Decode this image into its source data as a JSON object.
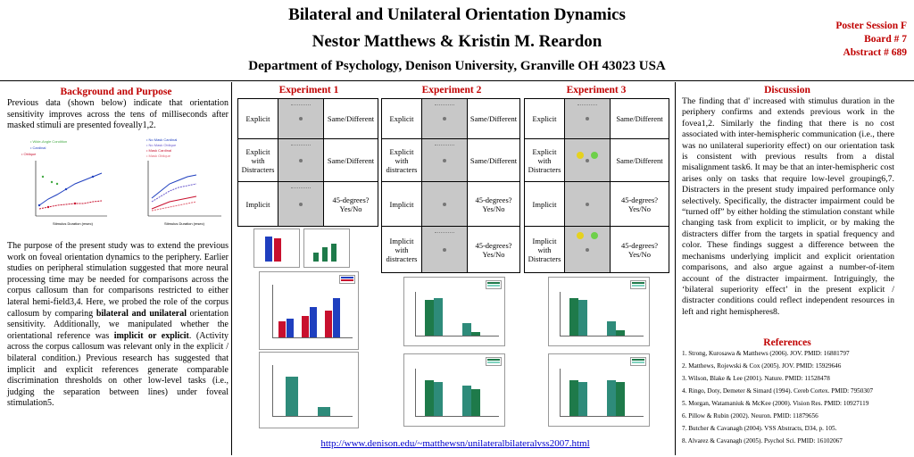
{
  "header": {
    "title": "Bilateral and Unilateral Orientation Dynamics",
    "authors": "Nestor Matthews & Kristin M. Reardon",
    "affiliation": "Department of Psychology, Denison University, Granville OH 43023 USA",
    "session": "Poster Session F",
    "board": "Board # 7",
    "abstract": "Abstract # 689"
  },
  "background": {
    "heading": "Background and Purpose",
    "para1": "Previous data (shown below) indicate that orientation sensitivity improves across the tens of milliseconds after masked stimuli are presented foveally1,2.",
    "para2_a": "The purpose of the present study was to extend the previous work on foveal orientation dynamics to the periphery. Earlier studies on peripheral stimulation suggested that more neural processing time may be needed for comparisons across the corpus callosum than for comparisons restricted to either lateral hemi-field3,4. Here, we probed the role of the corpus callosum by comparing ",
    "para2_b": "bilateral and unilateral",
    "para2_c": " orientation sensitivity. Additionally, we manipulated whether the orientational reference was ",
    "para2_d": "implicit or explicit",
    "para2_e": ".  (Activity across the corpus callosum was relevant only in the explicit / bilateral condition.) Previous research has suggested that implicit and explicit references generate comparable discrimination thresholds on other low-level tasks (i.e., judging the separation between lines) under foveal stimulation5."
  },
  "experiments": [
    {
      "heading": "Experiment 1",
      "rows": [
        {
          "label": "Explicit",
          "task": "Same/Different"
        },
        {
          "label": "Explicit with Distracters",
          "task": "Same/Different"
        },
        {
          "label": "Implicit",
          "task": "45-degrees? Yes/No"
        }
      ]
    },
    {
      "heading": "Experiment 2",
      "rows": [
        {
          "label": "Explicit",
          "task": "Same/Different"
        },
        {
          "label": "Explicit with distracters",
          "task": "Same/Different"
        },
        {
          "label": "Implicit",
          "task": "45-degrees? Yes/No"
        },
        {
          "label": "Implicit with distracters",
          "task": "45-degrees? Yes/No"
        }
      ]
    },
    {
      "heading": "Experiment 3",
      "rows": [
        {
          "label": "Explicit",
          "task": "Same/Different"
        },
        {
          "label": "Explicit with Distracters",
          "task": "Same/Different"
        },
        {
          "label": "Implicit",
          "task": "45-degrees? Yes/No"
        },
        {
          "label": "Implicit with Distracters",
          "task": "45-degrees? Yes/No"
        }
      ]
    }
  ],
  "discussion": {
    "heading": "Discussion",
    "text": "The finding that d' increased with stimulus duration in the periphery confirms and extends previous work in the fovea1,2. Similarly the finding that there is no cost associated with inter-hemispheric communication (i.e., there was no unilateral superiority effect) on our orientation task is consistent with previous results from a distal misalignment task6. It may be that an inter-hemispheric cost arises only on tasks that require low-level grouping6,7. Distracters in the present study impaired performance only selectively. Specifically, the distracter impairment could be “turned off” by either holding the stimulation constant while changing task from explicit to implicit, or by making the distracters differ from the targets in spatial frequency and color. These findings suggest a difference between the mechanisms underlying implicit and explicit orientation comparisons, and also argue against a number-of-item account of the distracter impairment. Intriguingly, the ‘bilateral superiority effect’ in the present explicit / distracter conditions could reflect independent resources in left and right hemispheres8."
  },
  "references": {
    "heading": "References",
    "items": [
      "1. Strong, Kurosawa & Matthews (2006). JOV. PMID: 16881797",
      "2. Matthews, Rojewski & Cox (2005). JOV. PMID: 15929646",
      "3. Wilson, Blake & Lee  (2001). Nature. PMID: 11528478",
      "4. Ringo, Doty, Demeter & Simard (1994). Cereb Cortex. PMID: 7950307",
      "5. Morgan, Watamaniuk & McKee (2000). Vision Res. PMID: 10927119",
      "6. Pillow & Rubin (2002). Neuron. PMID: 11879656",
      "7. Butcher & Cavanagh (2004). VSS Abstracts, D34, p. 105.",
      "8. Alvarez & Cavanagh (2005). Psychol Sci. PMID: 16102067"
    ]
  },
  "url": "http://www.denison.edu/~matthewsn/unilateralbilateralvss2007.html",
  "colors": {
    "accent": "#c00000",
    "link": "#0000cc",
    "bar_blue": "#1f3fbf",
    "bar_red": "#c8102e",
    "bar_green": "#1e7a4a",
    "bar_teal": "#2e8b7a"
  }
}
